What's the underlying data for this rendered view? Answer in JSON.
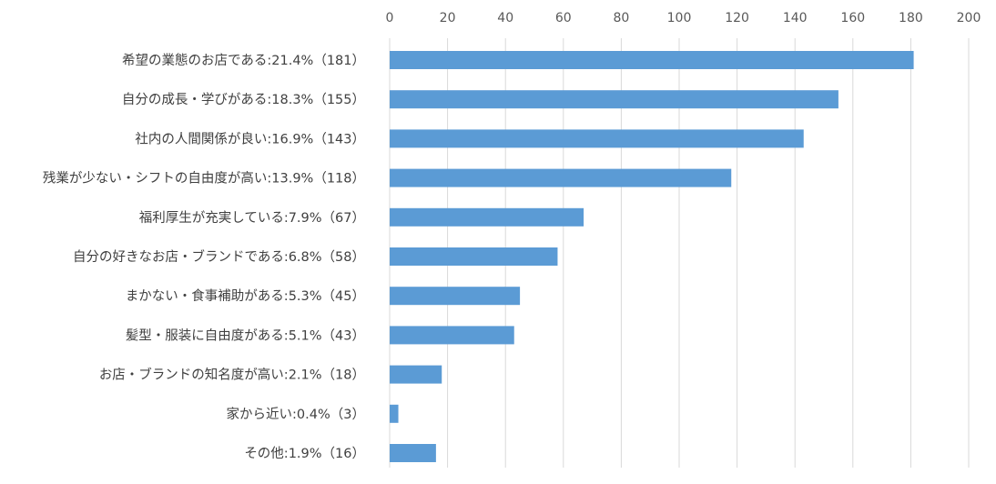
{
  "chart_data": {
    "type": "bar",
    "orientation": "horizontal",
    "categories": [
      "希望の業態のお店である:21.4%（181）",
      "自分の成長・学びがある:18.3%（155）",
      "社内の人間関係が良い:16.9%（143）",
      "残業が少ない・シフトの自由度が高い:13.9%（118）",
      "福利厚生が充実している:7.9%（67）",
      "自分の好きなお店・ブランドである:6.8%（58）",
      "まかない・食事補助がある:5.3%（45）",
      "髪型・服装に自由度がある:5.1%（43）",
      "お店・ブランドの知名度が高い:2.1%（18）",
      "家から近い:0.4%（3）",
      "その他:1.9%（16）"
    ],
    "values": [
      181,
      155,
      143,
      118,
      67,
      58,
      45,
      43,
      18,
      3,
      16
    ],
    "xlim": [
      0,
      200
    ],
    "x_ticks": [
      0,
      20,
      40,
      60,
      80,
      100,
      120,
      140,
      160,
      180,
      200
    ],
    "x_axis_position": "top",
    "grid": true,
    "bar_color": "#5b9bd5",
    "grid_color": "#d9d9d9"
  }
}
